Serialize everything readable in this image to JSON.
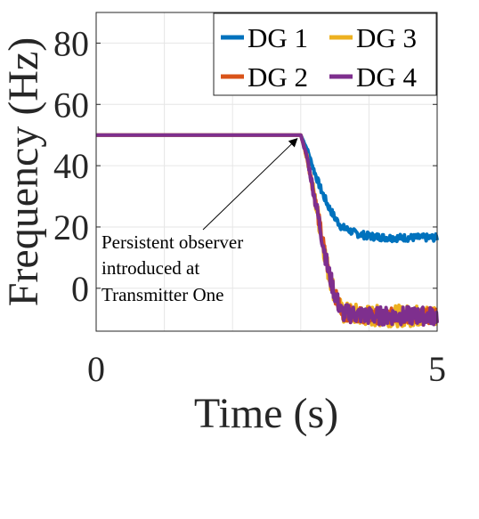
{
  "chart_data": {
    "type": "line",
    "title": "",
    "xlabel": "Time (s)",
    "ylabel": "Frequency (Hz)",
    "xlim": [
      0,
      5
    ],
    "ylim": [
      -14,
      90
    ],
    "xticks": [
      0,
      5
    ],
    "yticks": [
      0,
      20,
      40,
      60,
      80
    ],
    "xtick_labels": [
      "0",
      "5"
    ],
    "ytick_labels": [
      "0",
      "20",
      "40",
      "60",
      "80"
    ],
    "grid": true,
    "legend_position": "top-right",
    "legend_entries": [
      "DG 1",
      "DG 3",
      "DG 2",
      "DG 4"
    ],
    "annotation": {
      "lines": [
        "Persistent observer",
        "introduced at",
        "Transmitter One"
      ],
      "points_to": [
        3.0,
        50
      ]
    },
    "series": [
      {
        "name": "DG 1",
        "color": "#0072BD",
        "x": [
          0,
          3.0,
          3.1,
          3.2,
          3.3,
          3.4,
          3.5,
          3.6,
          3.8,
          4.0,
          4.3,
          4.6,
          5.0
        ],
        "y": [
          50,
          50,
          45,
          38,
          32,
          27,
          23,
          20,
          18,
          17,
          16.5,
          16.5,
          16.5
        ],
        "noise_amplitude": 1.2
      },
      {
        "name": "DG 2",
        "color": "#D95319",
        "x": [
          0,
          3.0,
          3.1,
          3.2,
          3.3,
          3.4,
          3.5,
          3.6,
          4.0,
          4.5,
          5.0
        ],
        "y": [
          50,
          50,
          42,
          30,
          18,
          6,
          -2,
          -8,
          -9,
          -9,
          -9
        ],
        "noise_amplitude": 2.5
      },
      {
        "name": "DG 3",
        "color": "#EDB120",
        "x": [
          0,
          3.0,
          3.1,
          3.2,
          3.3,
          3.4,
          3.5,
          3.6,
          4.0,
          4.5,
          5.0
        ],
        "y": [
          50,
          50,
          42,
          30,
          18,
          6,
          -2,
          -8,
          -9,
          -9,
          -9
        ],
        "noise_amplitude": 3.5
      },
      {
        "name": "DG 4",
        "color": "#7E2F8E",
        "x": [
          0,
          3.0,
          3.1,
          3.2,
          3.3,
          3.4,
          3.5,
          3.6,
          4.0,
          4.5,
          5.0
        ],
        "y": [
          50,
          50,
          42,
          30,
          18,
          6,
          -2,
          -8,
          -9,
          -9,
          -9
        ],
        "noise_amplitude": 3.0
      }
    ]
  }
}
